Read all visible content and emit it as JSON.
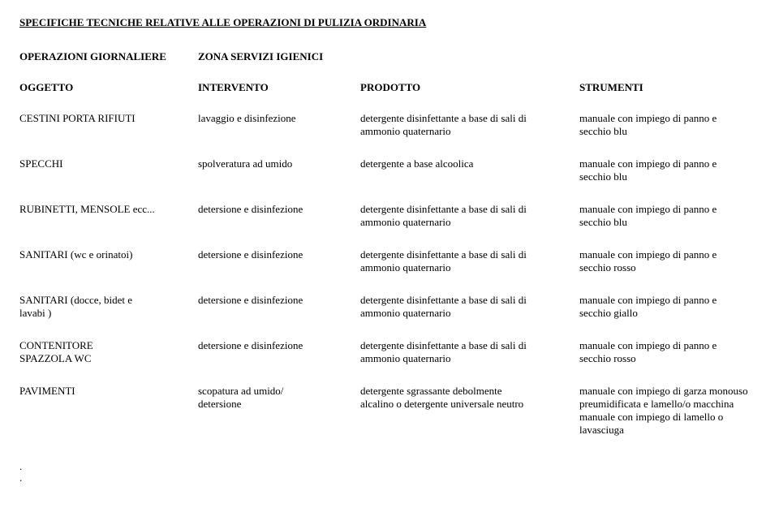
{
  "title": "SPECIFICHE TECNICHE RELATIVE ALLE OPERAZIONI DI PULIZIA ORDINARIA",
  "header_row": {
    "c1_line1": "OPERAZIONI GIORNALIERE",
    "c2_line1": "ZONA SERVIZI IGIENICI"
  },
  "columns": {
    "c1": "OGGETTO",
    "c2": "INTERVENTO",
    "c3": "PRODOTTO",
    "c4": "STRUMENTI"
  },
  "rows": [
    {
      "c1": [
        "CESTINI PORTA RIFIUTI"
      ],
      "c2": [
        "lavaggio e disinfezione"
      ],
      "c3": [
        "detergente disinfettante a base di sali di",
        "ammonio quaternario"
      ],
      "c4": [
        "manuale con impiego di panno e",
        "secchio blu"
      ]
    },
    {
      "c1": [
        "SPECCHI"
      ],
      "c2": [
        "spolveratura ad umido"
      ],
      "c3": [
        "detergente a base alcoolica"
      ],
      "c4": [
        "manuale con impiego di panno e",
        "secchio blu"
      ]
    },
    {
      "c1": [
        "RUBINETTI, MENSOLE ecc..."
      ],
      "c2": [
        "detersione e  disinfezione"
      ],
      "c3": [
        "detergente disinfettante a base di sali di",
        "ammonio quaternario"
      ],
      "c4": [
        "manuale con impiego di panno e",
        "secchio blu"
      ]
    },
    {
      "c1": [
        "SANITARI (wc e orinatoi)"
      ],
      "c2": [
        "detersione e disinfezione"
      ],
      "c3": [
        "detergente disinfettante a base di sali di",
        "ammonio quaternario"
      ],
      "c4": [
        "manuale con impiego di panno e",
        "secchio  rosso"
      ]
    },
    {
      "c1": [
        "SANITARI (docce, bidet e",
        "lavabi )"
      ],
      "c2": [
        "detersione e disinfezione"
      ],
      "c3": [
        "detergente disinfettante a base di sali di",
        "ammonio quaternario"
      ],
      "c4": [
        "manuale con impiego di panno e",
        "secchio giallo"
      ]
    },
    {
      "c1": [
        "CONTENITORE",
        "SPAZZOLA WC"
      ],
      "c2": [
        "detersione e disinfezione"
      ],
      "c3": [
        "detergente disinfettante a base di sali di",
        "ammonio quaternario"
      ],
      "c4": [
        "manuale con impiego di panno e",
        "secchio rosso"
      ]
    },
    {
      "c1": [
        "PAVIMENTI"
      ],
      "c2": [
        "scopatura ad umido/",
        "detersione"
      ],
      "c3": [
        "detergente sgrassante debolmente",
        "alcalino o detergente universale neutro"
      ],
      "c4": [
        "manuale con impiego di garza monouso",
        "preumidificata e lamello/o macchina",
        "manuale con impiego di lamello o lavasciuga"
      ]
    }
  ],
  "dots": [
    ".",
    "."
  ]
}
